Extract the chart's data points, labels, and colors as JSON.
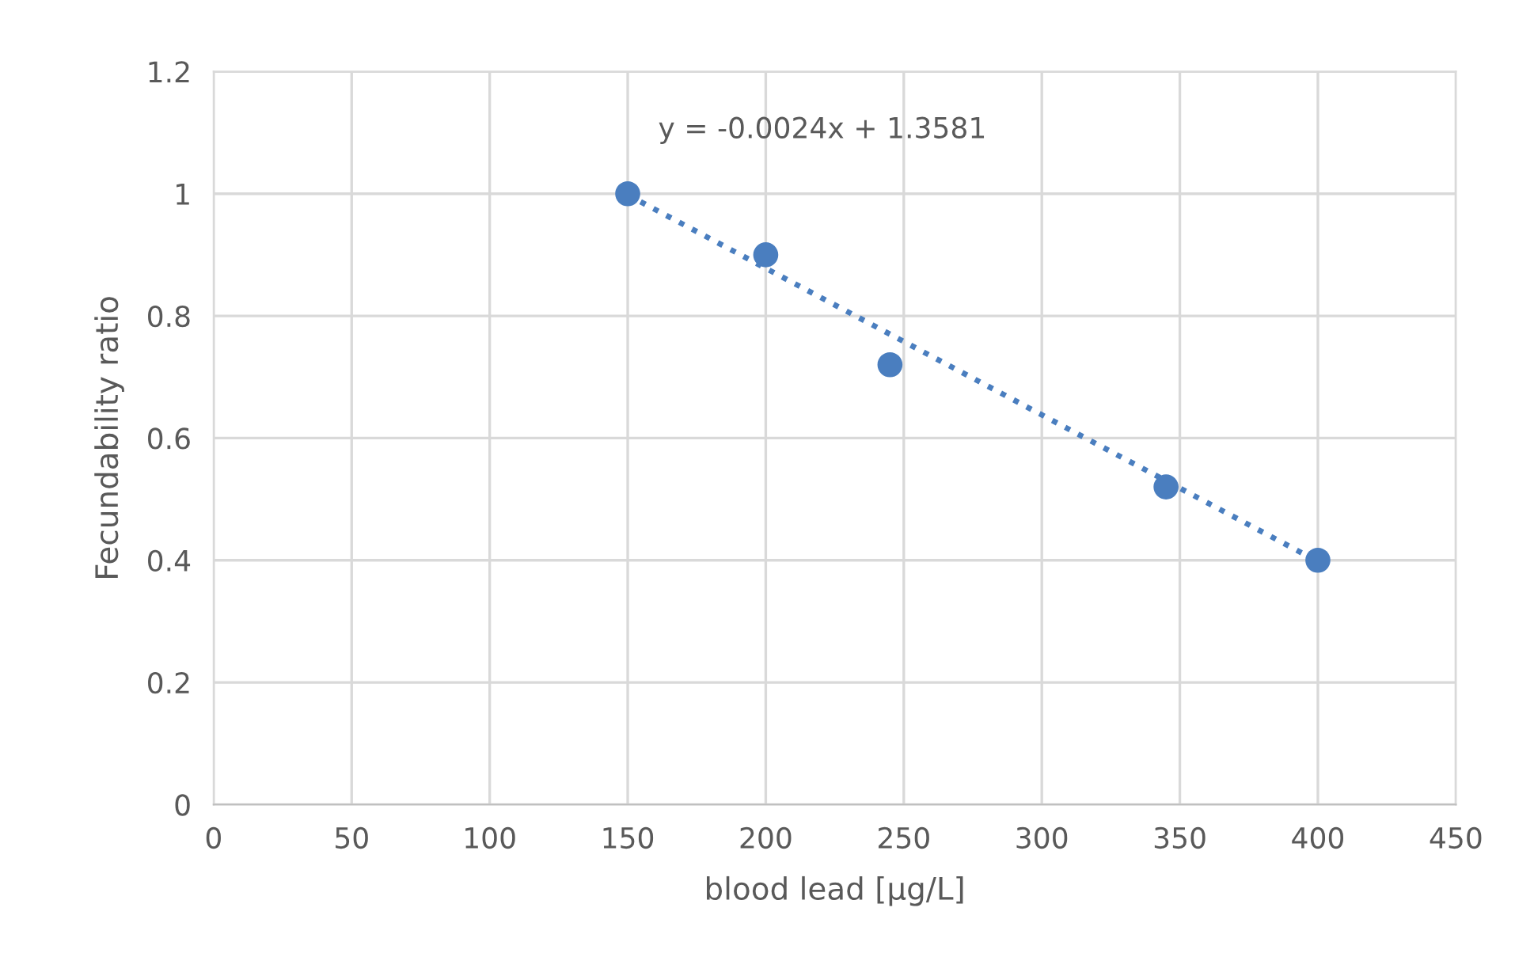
{
  "chart_data": {
    "type": "scatter",
    "xlabel": "blood lead [µg/L]",
    "ylabel": "Fecundability ratio",
    "annotations": [
      "y = -0.0024x + 1.3581"
    ],
    "series": [
      {
        "color": "#4a7ebf",
        "marker": "circle",
        "x": [
          150,
          200,
          245,
          345,
          400
        ],
        "values": [
          1.0,
          0.9,
          0.72,
          0.52,
          0.4
        ]
      },
      {
        "type": "line",
        "color": "#4a7ebf",
        "marker": "none",
        "line_style": "dotted",
        "x": [
          150,
          400
        ],
        "values": [
          0.998,
          0.398
        ]
      }
    ],
    "xlim": [
      0,
      450
    ],
    "xticks": [
      0,
      50,
      100,
      150,
      200,
      250,
      300,
      350,
      400,
      450
    ],
    "ylim": [
      0,
      1.2
    ],
    "yticks": [
      0,
      0.2,
      0.4,
      0.6,
      0.8,
      1,
      1.2
    ],
    "grid": true,
    "legend": false
  }
}
